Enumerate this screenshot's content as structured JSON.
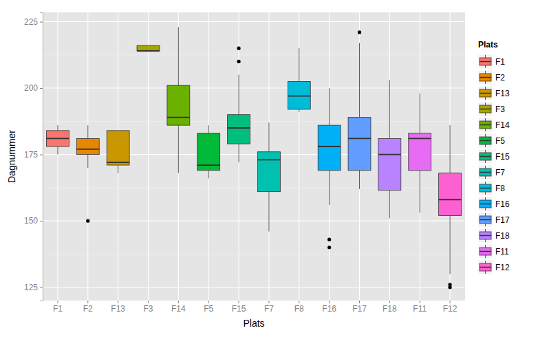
{
  "chart_data": {
    "type": "box",
    "x_label": "Plats",
    "y_label": "Dagnummer",
    "legend_title": "Plats",
    "legend": "right",
    "grid": true,
    "categories": [
      "F1",
      "F2",
      "F13",
      "F3",
      "F14",
      "F5",
      "F15",
      "F7",
      "F8",
      "F16",
      "F17",
      "F18",
      "F11",
      "F12"
    ],
    "colors": [
      "#F8766D",
      "#E58700",
      "#C99800",
      "#A3A500",
      "#6BB100",
      "#00BA38",
      "#00BF7D",
      "#00C0AF",
      "#00BCD8",
      "#00B0F6",
      "#619CFF",
      "#B983FF",
      "#E76BF3",
      "#FD61D1"
    ],
    "values": [
      {
        "whisker_low": 175,
        "q1": 178,
        "median": 181,
        "q3": 184,
        "whisker_high": 186,
        "outliers": []
      },
      {
        "whisker_low": 170,
        "q1": 175,
        "median": 177,
        "q3": 181,
        "whisker_high": 186,
        "outliers": [
          150
        ]
      },
      {
        "whisker_low": 168,
        "q1": 171,
        "median": 172,
        "q3": 184,
        "whisker_high": 184,
        "outliers": []
      },
      {
        "whisker_low": 214,
        "q1": 214,
        "median": 214,
        "q3": 216,
        "whisker_high": 216,
        "outliers": []
      },
      {
        "whisker_low": 168,
        "q1": 186,
        "median": 189,
        "q3": 201,
        "whisker_high": 223,
        "outliers": []
      },
      {
        "whisker_low": 166,
        "q1": 169,
        "median": 171,
        "q3": 183,
        "whisker_high": 186,
        "outliers": []
      },
      {
        "whisker_low": 172,
        "q1": 179,
        "median": 185,
        "q3": 190,
        "whisker_high": 205,
        "outliers": [
          210,
          215
        ]
      },
      {
        "whisker_low": 146,
        "q1": 161,
        "median": 173,
        "q3": 176,
        "whisker_high": 187,
        "outliers": []
      },
      {
        "whisker_low": 191,
        "q1": 192,
        "median": 197,
        "q3": 202.5,
        "whisker_high": 215,
        "outliers": []
      },
      {
        "whisker_low": 156,
        "q1": 169,
        "median": 178,
        "q3": 186,
        "whisker_high": 200,
        "outliers": [
          143,
          140
        ]
      },
      {
        "whisker_low": 162,
        "q1": 169,
        "median": 181,
        "q3": 189,
        "whisker_high": 217,
        "outliers": [
          221
        ]
      },
      {
        "whisker_low": 151,
        "q1": 161.5,
        "median": 175,
        "q3": 181,
        "whisker_high": 203,
        "outliers": []
      },
      {
        "whisker_low": 153,
        "q1": 169,
        "median": 181,
        "q3": 183,
        "whisker_high": 198,
        "outliers": []
      },
      {
        "whisker_low": 130,
        "q1": 152,
        "median": 158,
        "q3": 168,
        "whisker_high": 186,
        "outliers": [
          126,
          125
        ]
      }
    ],
    "ylim": [
      120,
      228.5
    ],
    "yticks": [
      125,
      150,
      175,
      200,
      225
    ]
  }
}
